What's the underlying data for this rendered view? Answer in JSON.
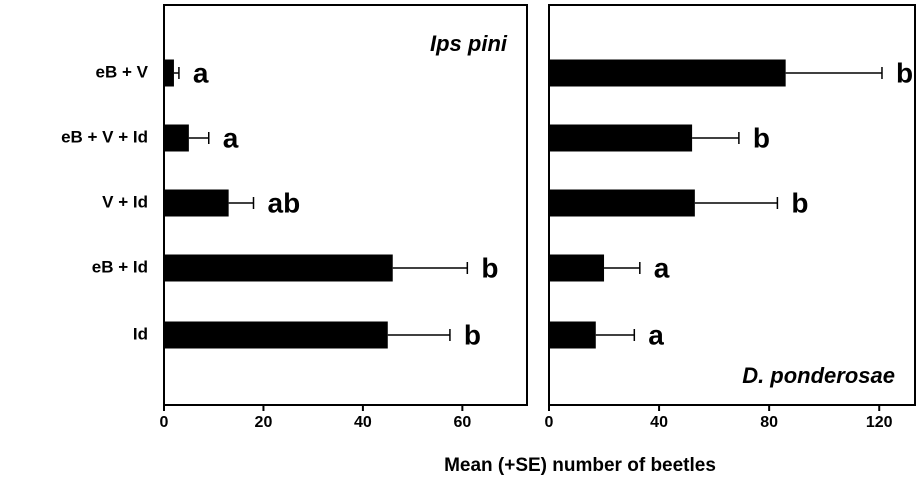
{
  "chart_data": [
    {
      "type": "bar",
      "orientation": "horizontal",
      "title": "Ips pini",
      "categories": [
        "eB + V",
        "eB + V + Id",
        "V + Id",
        "eB + Id",
        "Id"
      ],
      "values": [
        2,
        5,
        13,
        46,
        45
      ],
      "errors": [
        1,
        4,
        5,
        15,
        12.5
      ],
      "annotations": [
        "a",
        "a",
        "ab",
        "b",
        "b"
      ],
      "color": "#000000",
      "xlim": [
        0,
        73
      ],
      "xticks": [
        0,
        20,
        40,
        60
      ],
      "xlabel": "Mean (+SE) number of beetles"
    },
    {
      "type": "bar",
      "orientation": "horizontal",
      "title": "D. ponderosae",
      "values": [
        86,
        52,
        53,
        20,
        17
      ],
      "errors": [
        35,
        17,
        30,
        13,
        14
      ],
      "annotations": [
        "b",
        "b",
        "b",
        "a",
        "a"
      ],
      "color": "#000000",
      "xlim": [
        0,
        133
      ],
      "xticks": [
        0,
        40,
        80,
        120
      ]
    }
  ]
}
